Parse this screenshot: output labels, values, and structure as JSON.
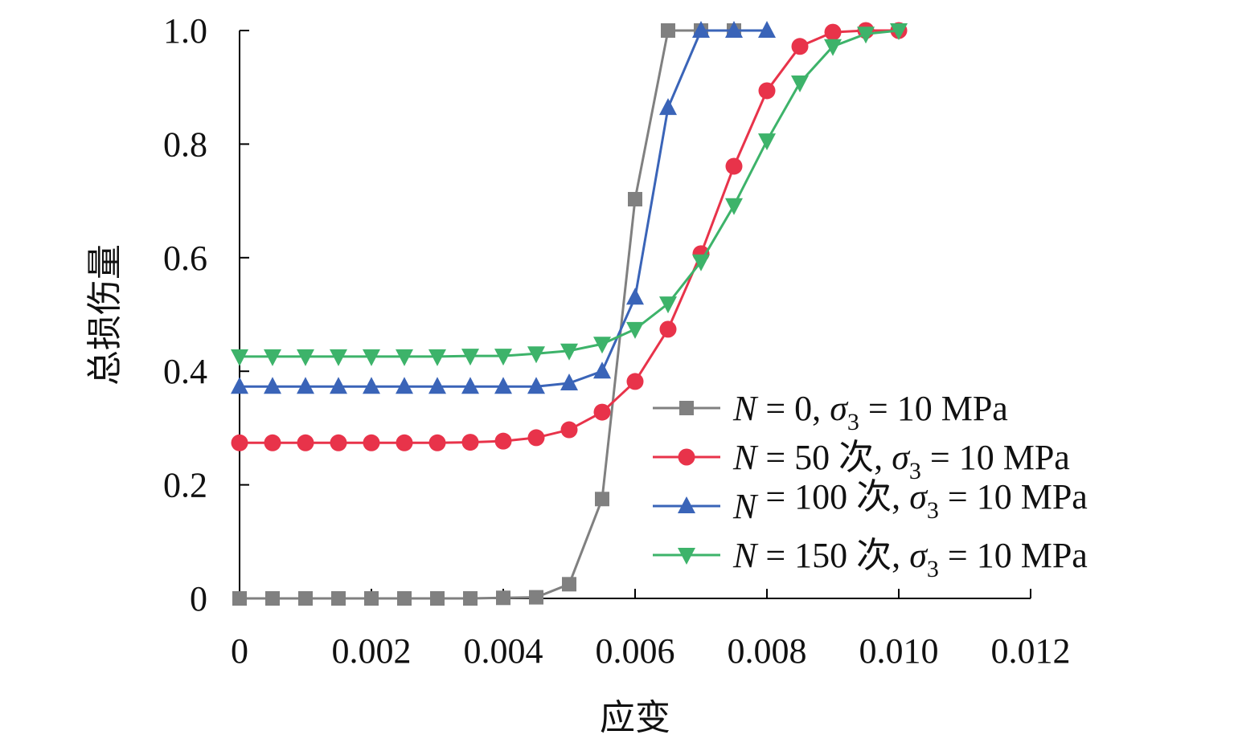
{
  "chart_data": {
    "type": "line",
    "title": "",
    "xlabel": "应变",
    "ylabel": "总损伤量",
    "xlim": [
      0,
      0.012
    ],
    "ylim": [
      0,
      1.0
    ],
    "xticks": [
      0,
      0.002,
      0.004,
      0.006,
      0.008,
      0.01,
      0.012
    ],
    "xtick_labels": [
      "0",
      "0.002",
      "0.004",
      "0.006",
      "0.008",
      "0.010",
      "0.012"
    ],
    "yticks": [
      0,
      0.2,
      0.4,
      0.6,
      0.8,
      1.0
    ],
    "ytick_labels": [
      "0",
      "0.2",
      "0.4",
      "0.6",
      "0.8",
      "1.0"
    ],
    "grid": false,
    "legend_position": "bottom-right",
    "series": [
      {
        "name": "N = 0, σ3 = 10 MPa",
        "legend": [
          {
            "t": "N",
            "i": true
          },
          {
            "t": " = 0, "
          },
          {
            "t": "σ",
            "i": true
          },
          {
            "t": "3",
            "sub": true
          },
          {
            "t": " = 10 MPa"
          }
        ],
        "color": "#808080",
        "marker": "square",
        "x": [
          0,
          0.0005,
          0.001,
          0.0015,
          0.002,
          0.0025,
          0.003,
          0.0035,
          0.004,
          0.0045,
          0.005,
          0.0055,
          0.006,
          0.0065,
          0.007,
          0.0075
        ],
        "y": [
          0,
          0,
          0,
          0,
          0,
          0,
          0,
          0,
          0.001,
          0.002,
          0.025,
          0.175,
          0.703,
          1.0,
          1.0,
          1.0
        ]
      },
      {
        "name": "N = 50 次, σ3 = 10 MPa",
        "legend": [
          {
            "t": "N",
            "i": true
          },
          {
            "t": " = 50 次, "
          },
          {
            "t": "σ",
            "i": true
          },
          {
            "t": "3",
            "sub": true
          },
          {
            "t": " = 10 MPa"
          }
        ],
        "color": "#e8334a",
        "marker": "circle",
        "x": [
          0,
          0.0005,
          0.001,
          0.0015,
          0.002,
          0.0025,
          0.003,
          0.0035,
          0.004,
          0.0045,
          0.005,
          0.0055,
          0.006,
          0.0065,
          0.007,
          0.0075,
          0.008,
          0.0085,
          0.009,
          0.0095,
          0.01
        ],
        "y": [
          0.274,
          0.274,
          0.274,
          0.274,
          0.274,
          0.274,
          0.274,
          0.275,
          0.277,
          0.283,
          0.297,
          0.328,
          0.382,
          0.474,
          0.607,
          0.761,
          0.894,
          0.972,
          0.997,
          1.0,
          1.0
        ]
      },
      {
        "name": "N = 100 次, σ3 = 10 MPa",
        "legend": [
          {
            "t": "N",
            "i": true
          },
          {
            "t": " = 100 次, "
          },
          {
            "t": "σ",
            "i": true
          },
          {
            "t": "3",
            "sub": true
          },
          {
            "t": " = 10 MPa"
          }
        ],
        "color": "#3a64b8",
        "marker": "triangle-up",
        "x": [
          0,
          0.0005,
          0.001,
          0.0015,
          0.002,
          0.0025,
          0.003,
          0.0035,
          0.004,
          0.0045,
          0.005,
          0.0055,
          0.006,
          0.0065,
          0.007,
          0.0075,
          0.008
        ],
        "y": [
          0.373,
          0.373,
          0.373,
          0.373,
          0.373,
          0.373,
          0.373,
          0.373,
          0.373,
          0.373,
          0.379,
          0.4,
          0.53,
          0.864,
          1.0,
          1.0,
          1.0
        ]
      },
      {
        "name": "N = 150 次, σ3 = 10 MPa",
        "legend": [
          {
            "t": "N",
            "i": true
          },
          {
            "t": " = 150 次, "
          },
          {
            "t": "σ",
            "i": true
          },
          {
            "t": "3",
            "sub": true
          },
          {
            "t": " = 10 MPa"
          }
        ],
        "color": "#3db36a",
        "marker": "triangle-down",
        "x": [
          0,
          0.0005,
          0.001,
          0.0015,
          0.002,
          0.0025,
          0.003,
          0.0035,
          0.004,
          0.0045,
          0.005,
          0.0055,
          0.006,
          0.0065,
          0.007,
          0.0075,
          0.008,
          0.0085,
          0.009,
          0.0095,
          0.01
        ],
        "y": [
          0.426,
          0.426,
          0.426,
          0.426,
          0.426,
          0.426,
          0.426,
          0.427,
          0.427,
          0.431,
          0.436,
          0.448,
          0.474,
          0.519,
          0.593,
          0.692,
          0.806,
          0.908,
          0.972,
          0.994,
          1.0
        ]
      }
    ]
  }
}
